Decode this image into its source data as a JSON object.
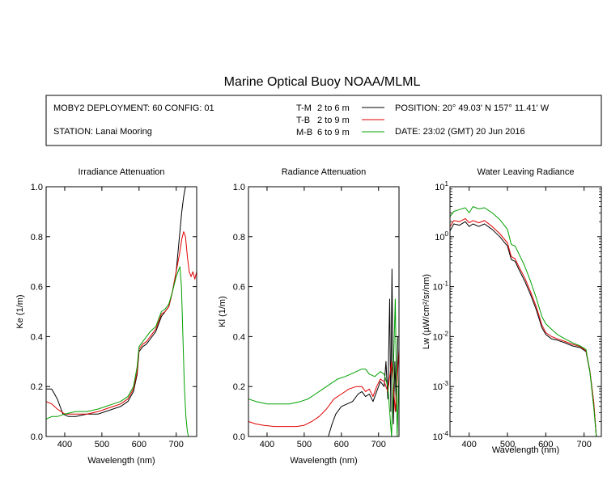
{
  "page": {
    "title": "Marine Optical Buoy NOAA/MLML"
  },
  "info": {
    "deployment": "MOBY2 DEPLOYMENT: 60 CONFIG: 01",
    "station": "STATION: Lanai Mooring",
    "position": "POSITION: 20° 49.03' N   157° 11.41' W",
    "date": "DATE: 23:02 (GMT) 20 Jun 2016",
    "legend": [
      {
        "label": "T-M",
        "range": "2 to 6  m",
        "color": "#000000"
      },
      {
        "label": "T-B",
        "range": "2 to 9  m",
        "color": "#e00000"
      },
      {
        "label": "M-B",
        "range": "6 to 9  m",
        "color": "#00a000"
      }
    ]
  },
  "chart_data": [
    {
      "type": "line",
      "title": "Irradiance Attenuation",
      "xlabel": "Wavelength (nm)",
      "ylabel": "Ke  (1/m)",
      "xlim": [
        350,
        755
      ],
      "ylim": [
        0,
        1.0
      ],
      "xticks": [
        400,
        500,
        600,
        700
      ],
      "yticks": [
        0.0,
        0.2,
        0.4,
        0.6,
        0.8,
        1.0
      ],
      "yticklabels": [
        "0.0",
        "0.2",
        "0.4",
        "0.6",
        "0.8",
        "1.0"
      ],
      "series": [
        {
          "name": "T-M",
          "color": "#000000",
          "x": [
            350,
            365,
            380,
            395,
            410,
            430,
            460,
            490,
            510,
            530,
            550,
            570,
            585,
            595,
            600,
            610,
            620,
            630,
            645,
            655,
            660,
            670,
            680,
            690,
            700,
            705,
            710,
            715,
            720,
            725
          ],
          "y": [
            0.19,
            0.19,
            0.15,
            0.09,
            0.08,
            0.08,
            0.09,
            0.09,
            0.1,
            0.11,
            0.12,
            0.14,
            0.18,
            0.25,
            0.34,
            0.36,
            0.37,
            0.39,
            0.42,
            0.46,
            0.48,
            0.5,
            0.52,
            0.58,
            0.66,
            0.74,
            0.82,
            0.9,
            0.96,
            1.0
          ]
        },
        {
          "name": "T-B",
          "color": "#e00000",
          "x": [
            350,
            365,
            380,
            400,
            430,
            460,
            490,
            510,
            530,
            550,
            570,
            585,
            595,
            600,
            610,
            620,
            630,
            645,
            655,
            660,
            670,
            680,
            690,
            700,
            710,
            715,
            720,
            725,
            730,
            735,
            740,
            745,
            750,
            755
          ],
          "y": [
            0.14,
            0.13,
            0.11,
            0.09,
            0.09,
            0.09,
            0.1,
            0.11,
            0.12,
            0.13,
            0.15,
            0.19,
            0.26,
            0.35,
            0.37,
            0.38,
            0.4,
            0.43,
            0.47,
            0.49,
            0.5,
            0.52,
            0.58,
            0.66,
            0.74,
            0.79,
            0.82,
            0.8,
            0.72,
            0.66,
            0.64,
            0.66,
            0.63,
            0.66
          ]
        },
        {
          "name": "M-B",
          "color": "#00a000",
          "x": [
            350,
            365,
            380,
            400,
            430,
            460,
            490,
            510,
            530,
            550,
            570,
            585,
            595,
            600,
            610,
            620,
            630,
            645,
            655,
            660,
            670,
            680,
            690,
            700,
            710,
            714,
            718,
            722,
            726,
            730,
            733
          ],
          "y": [
            0.07,
            0.08,
            0.08,
            0.09,
            0.1,
            0.1,
            0.11,
            0.12,
            0.13,
            0.14,
            0.16,
            0.2,
            0.28,
            0.36,
            0.38,
            0.4,
            0.42,
            0.44,
            0.48,
            0.5,
            0.51,
            0.53,
            0.58,
            0.64,
            0.68,
            0.6,
            0.4,
            0.2,
            0.08,
            0.02,
            0.0
          ]
        }
      ]
    },
    {
      "type": "line",
      "title": "Radiance Attenuation",
      "xlabel": "Wavelength (nm)",
      "ylabel": "Kl  (1/m)",
      "xlim": [
        350,
        755
      ],
      "ylim": [
        0,
        1.0
      ],
      "xticks": [
        400,
        500,
        600,
        700
      ],
      "yticks": [
        0.0,
        0.2,
        0.4,
        0.6,
        0.8,
        1.0
      ],
      "yticklabels": [
        "0.0",
        "0.2",
        "0.4",
        "0.6",
        "0.8",
        "1.0"
      ],
      "series": [
        {
          "name": "T-M",
          "color": "#000000",
          "x": [
            565,
            575,
            585,
            600,
            615,
            630,
            645,
            655,
            665,
            675,
            685,
            695,
            705,
            715,
            720,
            725,
            730,
            733,
            736,
            740,
            744,
            748,
            752
          ],
          "y": [
            0.0,
            0.05,
            0.09,
            0.12,
            0.13,
            0.14,
            0.17,
            0.18,
            0.16,
            0.17,
            0.14,
            0.18,
            0.22,
            0.2,
            0.3,
            0.15,
            0.55,
            0.1,
            0.67,
            0.05,
            0.3,
            0.1,
            0.4
          ]
        },
        {
          "name": "T-B",
          "color": "#e00000",
          "x": [
            350,
            370,
            390,
            420,
            450,
            480,
            500,
            520,
            540,
            560,
            580,
            600,
            620,
            640,
            655,
            665,
            675,
            685,
            695,
            705,
            715,
            725,
            735,
            745,
            755
          ],
          "y": [
            0.06,
            0.05,
            0.045,
            0.04,
            0.04,
            0.04,
            0.045,
            0.06,
            0.08,
            0.11,
            0.15,
            0.17,
            0.19,
            0.2,
            0.2,
            0.18,
            0.19,
            0.16,
            0.2,
            0.23,
            0.22,
            0.18,
            0.3,
            0.1,
            0.35
          ]
        },
        {
          "name": "M-B",
          "color": "#00a000",
          "x": [
            350,
            370,
            400,
            430,
            460,
            490,
            510,
            530,
            550,
            570,
            590,
            610,
            625,
            640,
            655,
            665,
            675,
            690,
            705,
            715,
            725,
            735,
            745,
            750,
            755
          ],
          "y": [
            0.15,
            0.14,
            0.13,
            0.13,
            0.13,
            0.14,
            0.15,
            0.17,
            0.19,
            0.21,
            0.23,
            0.24,
            0.25,
            0.26,
            0.27,
            0.27,
            0.25,
            0.24,
            0.26,
            0.25,
            0.2,
            0.0,
            0.55,
            0.0,
            0.25
          ]
        }
      ]
    },
    {
      "type": "line",
      "title": "Water Leaving Radiance",
      "xlabel": "Wavelength (nm)",
      "ylabel": "Lw  (µW/cm²/sr/nm)",
      "yscale": "log",
      "xlim": [
        350,
        745
      ],
      "ylim": [
        0.0001,
        10
      ],
      "xticks": [
        400,
        500,
        600,
        700
      ],
      "yticks": [
        0.0001,
        0.001,
        0.01,
        0.1,
        1,
        10
      ],
      "yticklabels": [
        {
          "base": "10",
          "exp": "-4"
        },
        {
          "base": "10",
          "exp": "-3"
        },
        {
          "base": "10",
          "exp": "-2"
        },
        {
          "base": "10",
          "exp": "-1"
        },
        {
          "base": "10",
          "exp": "0"
        },
        {
          "base": "10",
          "exp": "1"
        }
      ],
      "series": [
        {
          "name": "T-M",
          "color": "#000000",
          "x": [
            350,
            360,
            375,
            390,
            400,
            410,
            425,
            440,
            460,
            480,
            500,
            510,
            520,
            530,
            545,
            560,
            575,
            590,
            600,
            615,
            630,
            650,
            670,
            690,
            705,
            715,
            725,
            732,
            738
          ],
          "y": [
            1.3,
            1.8,
            1.7,
            2.0,
            1.6,
            1.8,
            1.6,
            1.8,
            1.4,
            1.0,
            0.65,
            0.35,
            0.32,
            0.22,
            0.13,
            0.07,
            0.035,
            0.015,
            0.011,
            0.009,
            0.0085,
            0.0075,
            0.0065,
            0.006,
            0.005,
            0.002,
            0.0005,
            0.0001,
            5e-05
          ]
        },
        {
          "name": "T-B",
          "color": "#e00000",
          "x": [
            350,
            360,
            375,
            390,
            400,
            410,
            425,
            440,
            460,
            480,
            500,
            510,
            520,
            530,
            545,
            560,
            575,
            590,
            600,
            615,
            630,
            650,
            670,
            690,
            705,
            715,
            725,
            732,
            738
          ],
          "y": [
            1.6,
            2.1,
            2.0,
            2.3,
            1.9,
            2.1,
            1.9,
            2.1,
            1.6,
            1.15,
            0.75,
            0.4,
            0.36,
            0.25,
            0.15,
            0.08,
            0.04,
            0.017,
            0.012,
            0.01,
            0.009,
            0.008,
            0.007,
            0.0063,
            0.0052,
            0.0021,
            0.0005,
            0.0001,
            6e-05
          ]
        },
        {
          "name": "M-B",
          "color": "#00a000",
          "x": [
            350,
            360,
            375,
            390,
            400,
            410,
            425,
            440,
            460,
            480,
            500,
            510,
            520,
            530,
            545,
            560,
            575,
            590,
            600,
            615,
            630,
            650,
            670,
            690,
            705,
            715,
            725,
            732
          ],
          "y": [
            2.5,
            3.2,
            3.5,
            3.8,
            3.0,
            4.0,
            3.6,
            3.8,
            3.0,
            2.2,
            1.4,
            0.7,
            0.65,
            0.45,
            0.26,
            0.13,
            0.06,
            0.025,
            0.018,
            0.014,
            0.011,
            0.009,
            0.0075,
            0.0065,
            0.0055,
            0.002,
            0.0004,
            0.0001
          ]
        }
      ]
    }
  ]
}
